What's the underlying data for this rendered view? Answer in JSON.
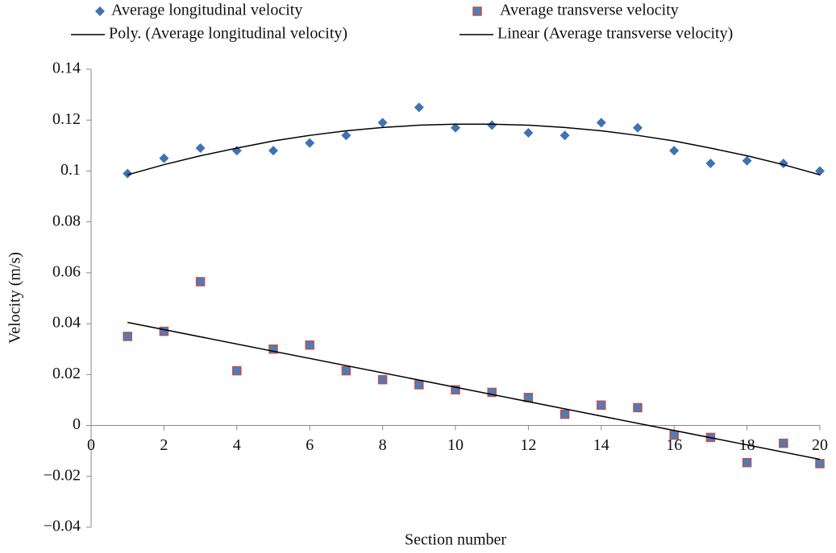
{
  "chart_data": {
    "type": "scatter",
    "xlabel": "Section number",
    "ylabel": "Velocity (m/s)",
    "xlim": [
      0,
      20
    ],
    "xticks": [
      0,
      2,
      4,
      6,
      8,
      10,
      12,
      14,
      16,
      18,
      20
    ],
    "ylim": [
      -0.04,
      0.14
    ],
    "yticks": [
      {
        "value": -0.04,
        "label": "−0.04"
      },
      {
        "value": -0.02,
        "label": "−0.02"
      },
      0,
      0.02,
      0.04,
      0.06,
      0.08,
      0.1,
      0.12,
      0.14
    ],
    "series": [
      {
        "name": "Average longitudinal velocity",
        "kind": "scatter",
        "marker": "diamond",
        "color": "#3e72b4",
        "x": [
          1,
          2,
          3,
          4,
          5,
          6,
          7,
          8,
          9,
          10,
          11,
          12,
          13,
          14,
          15,
          16,
          17,
          18,
          19,
          20
        ],
        "values": [
          0.099,
          0.105,
          0.109,
          0.108,
          0.108,
          0.111,
          0.114,
          0.119,
          0.125,
          0.117,
          0.118,
          0.115,
          0.114,
          0.119,
          0.117,
          0.108,
          0.103,
          0.104,
          0.103,
          0.1
        ]
      },
      {
        "name": "Average transverse velocity",
        "kind": "scatter",
        "marker": "square",
        "color": "#4a7ebb",
        "edge": "#c0504d",
        "x": [
          1,
          2,
          3,
          4,
          5,
          6,
          7,
          8,
          9,
          10,
          11,
          12,
          13,
          14,
          15,
          16,
          17,
          18,
          19,
          20
        ],
        "values": [
          0.035,
          0.037,
          0.0565,
          0.0215,
          0.03,
          0.0316,
          0.0215,
          0.018,
          0.016,
          0.014,
          0.013,
          0.011,
          0.0044,
          0.008,
          0.007,
          -0.0038,
          -0.0047,
          -0.0146,
          -0.007,
          -0.015
        ]
      },
      {
        "name": "Poly. (Average longitudinal velocity)",
        "kind": "line",
        "color": "#000000",
        "x": [
          1,
          2,
          3,
          4,
          5,
          6,
          7,
          8,
          9,
          10,
          11,
          12,
          13,
          14,
          15,
          16,
          17,
          18,
          19,
          20
        ],
        "values": [
          0.0985,
          0.1025,
          0.106,
          0.109,
          0.1118,
          0.114,
          0.1158,
          0.1171,
          0.118,
          0.1184,
          0.1184,
          0.118,
          0.1171,
          0.1158,
          0.114,
          0.1118,
          0.109,
          0.106,
          0.1025,
          0.0985
        ]
      },
      {
        "name": "Linear (Average transverse velocity)",
        "kind": "line",
        "color": "#000000",
        "x": [
          1,
          20
        ],
        "values": [
          0.0405,
          -0.0133
        ]
      }
    ]
  }
}
